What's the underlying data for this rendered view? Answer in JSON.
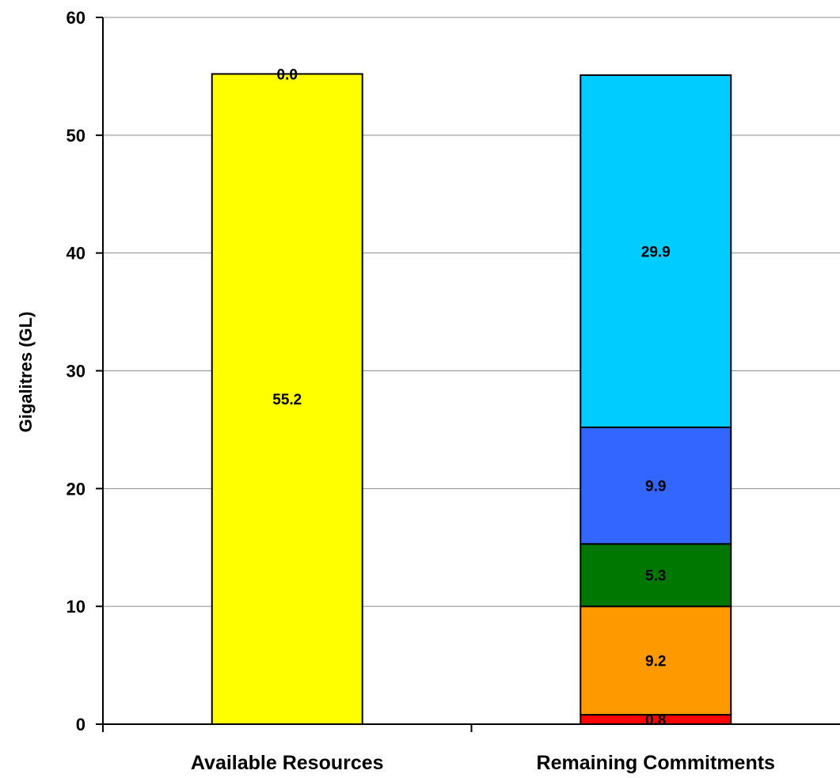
{
  "chart_data": {
    "type": "bar",
    "stacked": true,
    "title": "",
    "xlabel": "",
    "ylabel": "Gigalitres (GL)",
    "ylim": [
      0,
      60
    ],
    "yticks": [
      0,
      10,
      20,
      30,
      40,
      50,
      60
    ],
    "grid": true,
    "legend": "none",
    "categories": [
      "Available Resources",
      "Remaining Commitments"
    ],
    "stacks": [
      {
        "category": "Available Resources",
        "segments": [
          {
            "value": 55.2,
            "label": "55.2",
            "color": "#FFFF00"
          },
          {
            "value": 0.0,
            "label": "0.0",
            "color": "#FFFF00"
          }
        ]
      },
      {
        "category": "Remaining Commitments",
        "segments": [
          {
            "value": 0.8,
            "label": "0.8",
            "color": "#FF0000"
          },
          {
            "value": 9.2,
            "label": "9.2",
            "color": "#FF9900"
          },
          {
            "value": 5.3,
            "label": "5.3",
            "color": "#007700"
          },
          {
            "value": 9.9,
            "label": "9.9",
            "color": "#3366FF"
          },
          {
            "value": 29.9,
            "label": "29.9",
            "color": "#00CCFF"
          }
        ]
      }
    ]
  }
}
